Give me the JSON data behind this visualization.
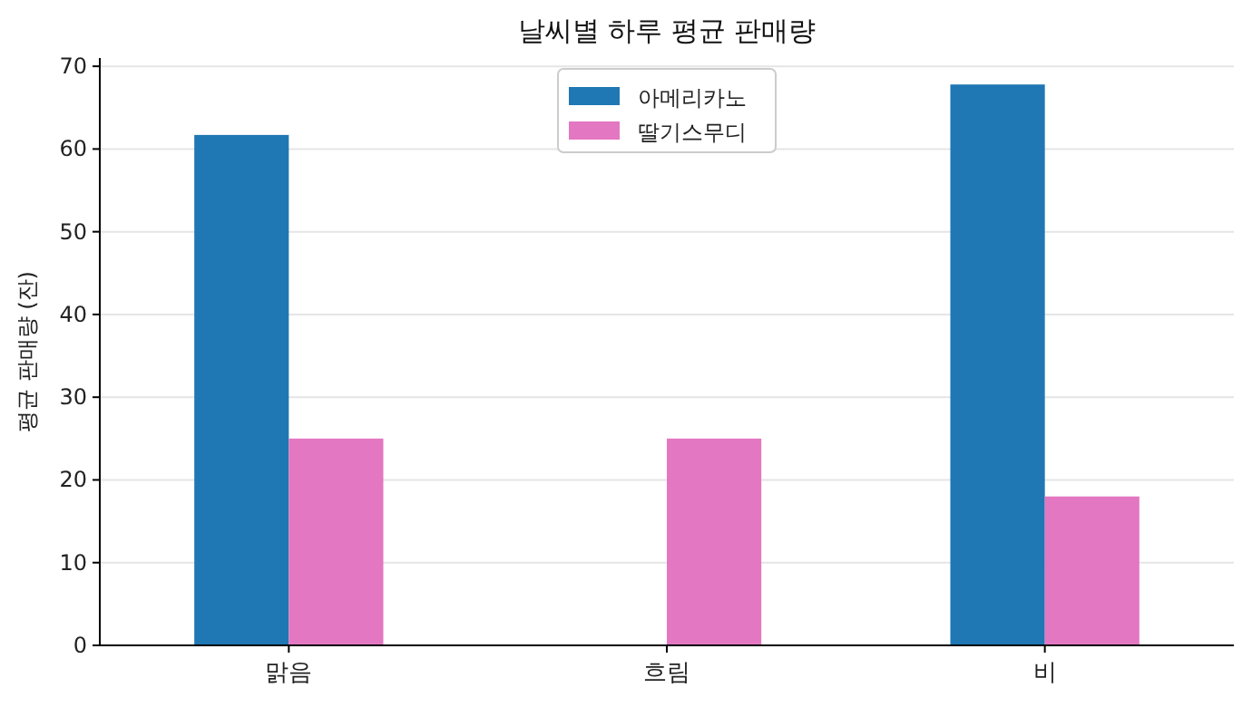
{
  "chart_data": {
    "type": "bar",
    "title": "날씨별 하루 평균 판매량",
    "ylabel": "평균 판매량 (잔)",
    "categories": [
      "맑음",
      "흐림",
      "비"
    ],
    "series": [
      {
        "name": "아메리카노",
        "color": "#1f77b4",
        "values": [
          61.7,
          null,
          67.8
        ]
      },
      {
        "name": "딸기스무디",
        "color": "#e377c2",
        "values": [
          25.0,
          25.0,
          18.0
        ]
      }
    ],
    "ylim": [
      0,
      71
    ],
    "yticks": [
      0,
      10,
      20,
      30,
      40,
      50,
      60,
      70
    ],
    "grid": "y",
    "legend": "top"
  }
}
